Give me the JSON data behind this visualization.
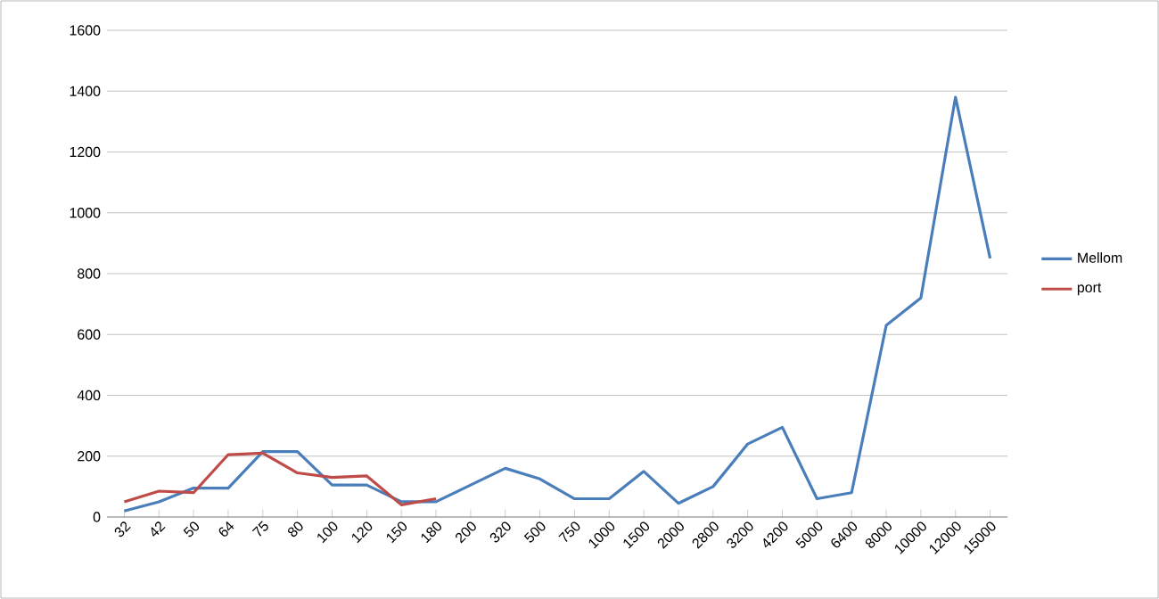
{
  "chart_data": {
    "type": "line",
    "categories": [
      "32",
      "42",
      "50",
      "64",
      "75",
      "80",
      "100",
      "120",
      "150",
      "180",
      "200",
      "320",
      "500",
      "750",
      "1000",
      "1500",
      "2000",
      "2800",
      "3200",
      "4200",
      "5000",
      "6400",
      "8000",
      "10000",
      "12000",
      "15000"
    ],
    "series": [
      {
        "name": "Mellom",
        "color": "#4a7ebb",
        "values": [
          20,
          50,
          95,
          95,
          215,
          215,
          105,
          105,
          50,
          50,
          105,
          160,
          125,
          60,
          60,
          150,
          45,
          100,
          240,
          295,
          60,
          80,
          630,
          720,
          1380,
          850
        ]
      },
      {
        "name": "port",
        "color": "#be4b48",
        "values": [
          50,
          85,
          80,
          205,
          210,
          145,
          130,
          135,
          40,
          60,
          null,
          null,
          null,
          null,
          null,
          null,
          null,
          null,
          null,
          null,
          null,
          null,
          null,
          null,
          null,
          null
        ]
      }
    ],
    "ylim": [
      0,
      1600
    ],
    "yticks": [
      0,
      200,
      400,
      600,
      800,
      1000,
      1200,
      1400,
      1600
    ],
    "grid": "y",
    "legend": "right",
    "marker": "none",
    "line_style": "solid"
  }
}
